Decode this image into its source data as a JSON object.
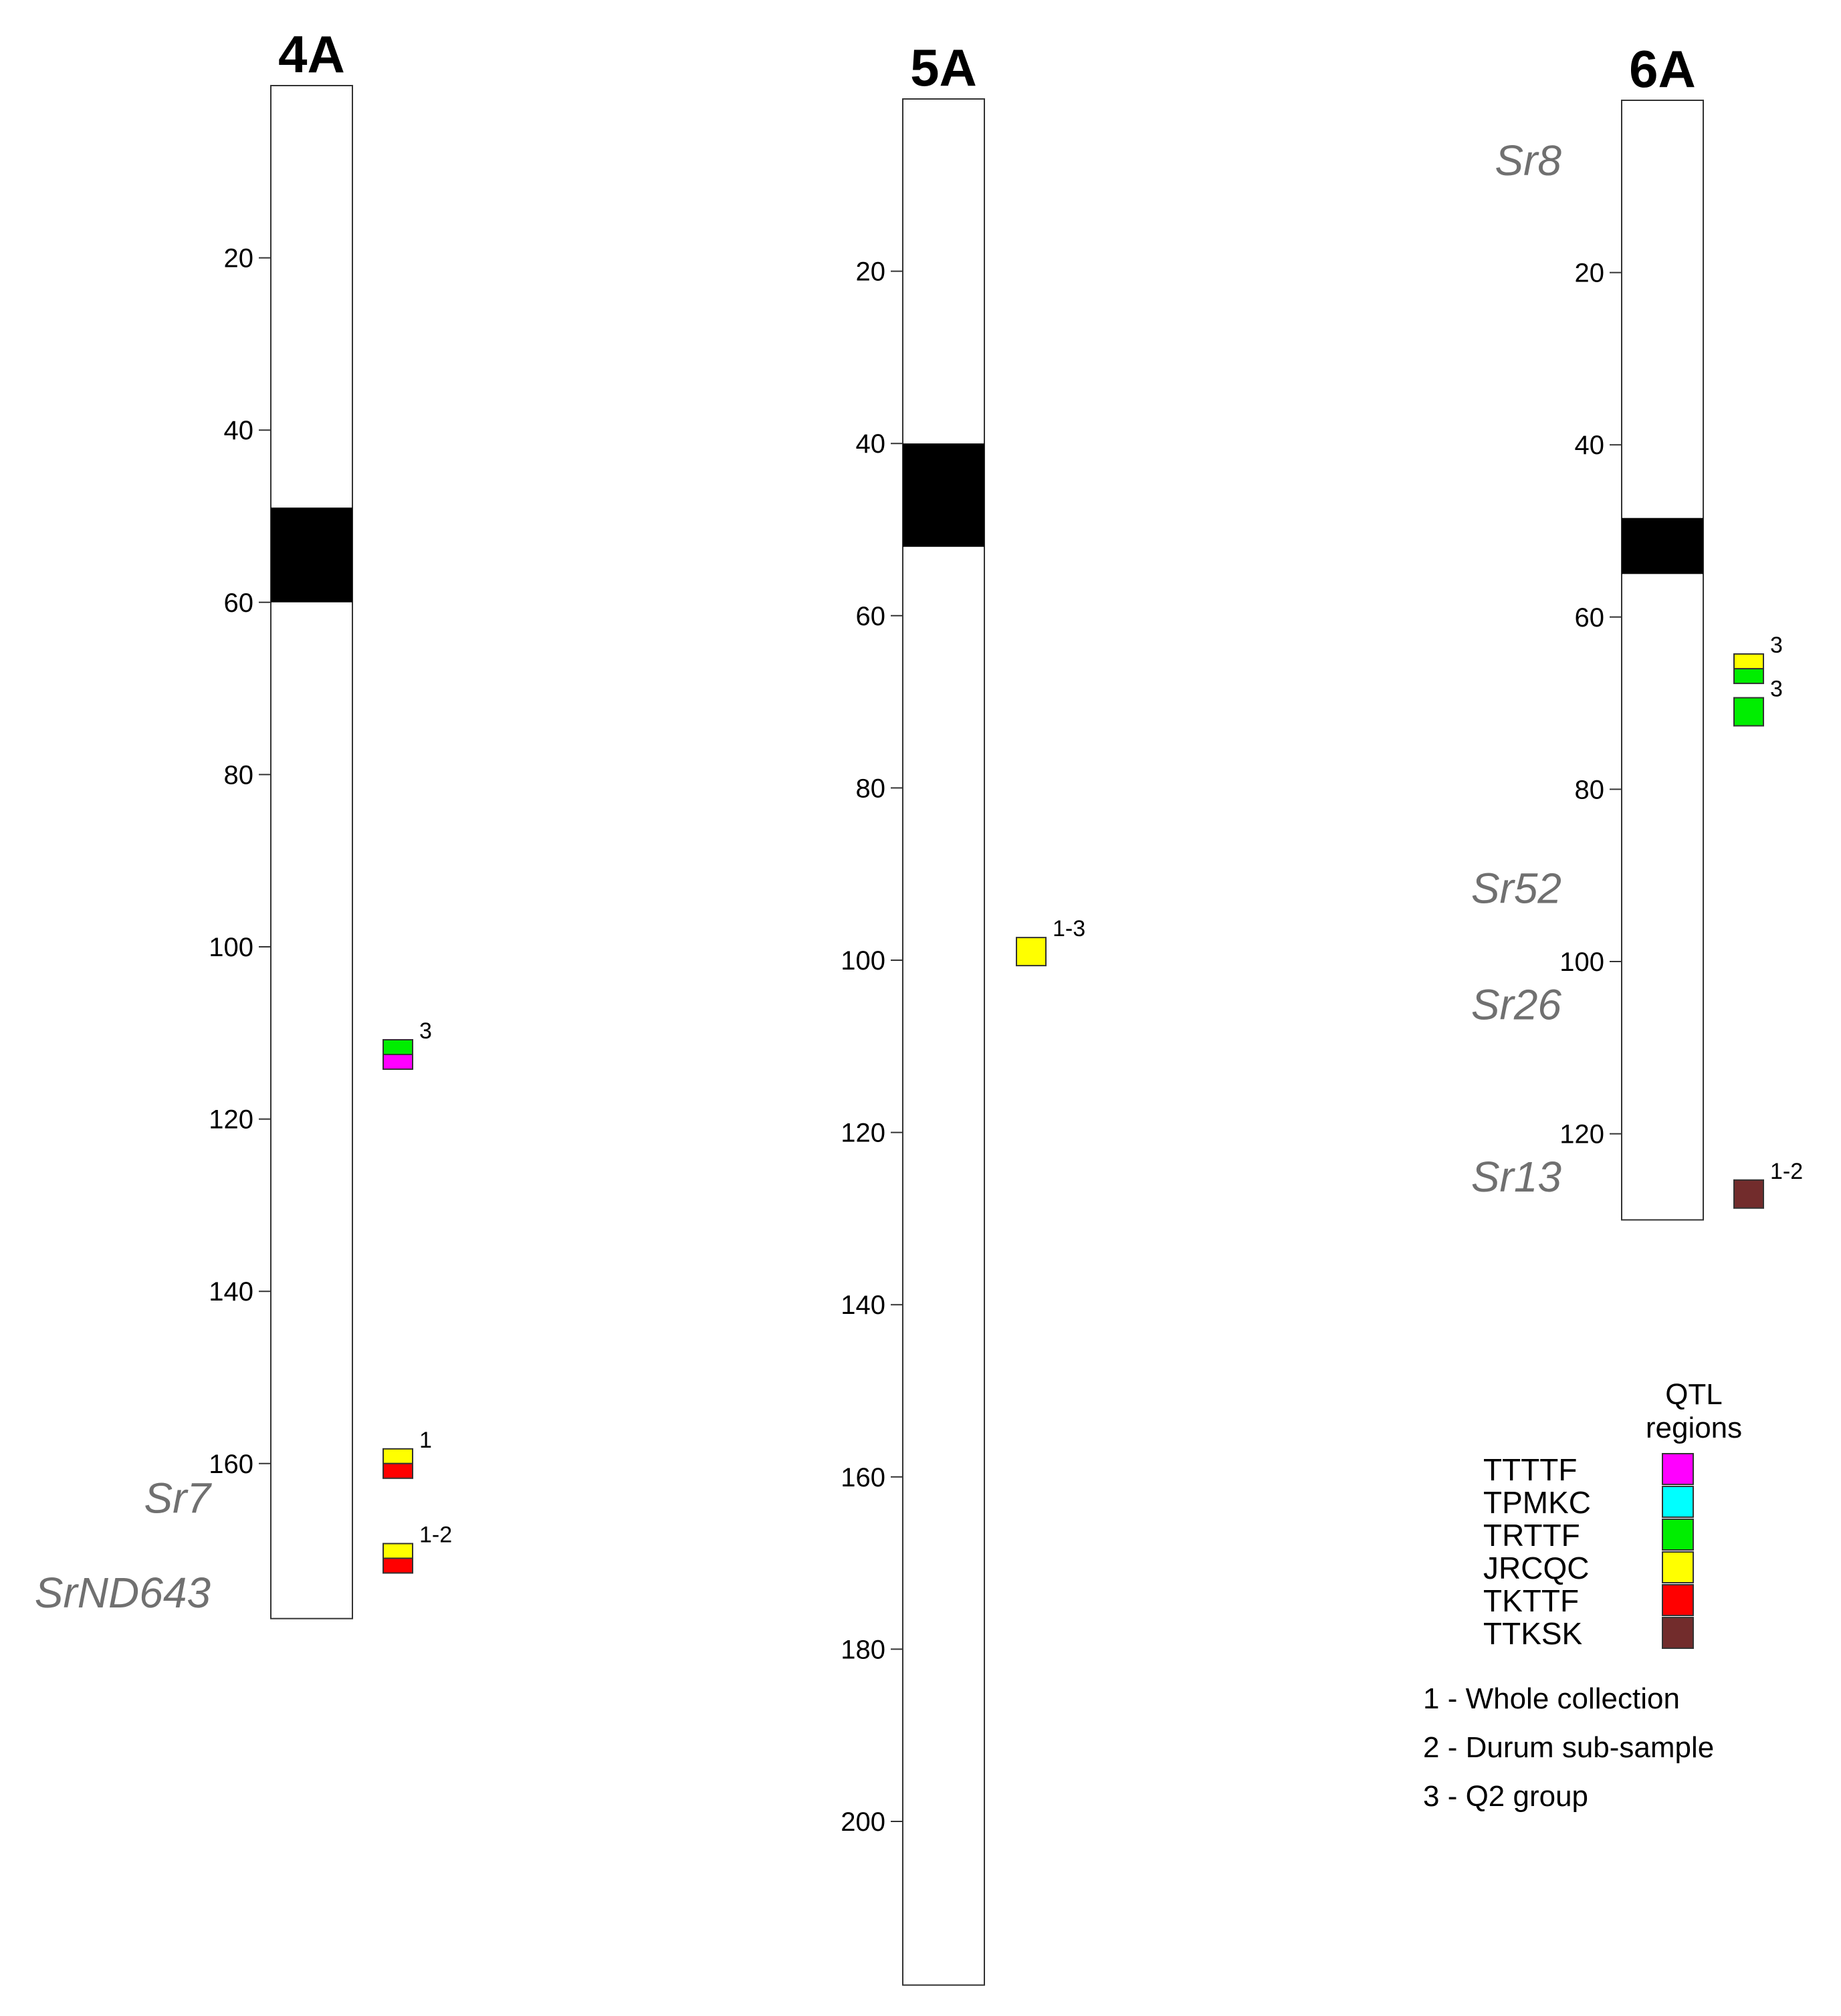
{
  "chromosomes": [
    {
      "id": "4A",
      "title": "4A",
      "length_cM": 178,
      "centromere": [
        49,
        60
      ],
      "ticks": [
        20,
        40,
        60,
        80,
        100,
        120,
        140,
        160
      ],
      "genes": [
        {
          "name": "Sr7",
          "pos": 164
        },
        {
          "name": "SrND643",
          "pos": 175
        }
      ],
      "qtls": [
        {
          "pos": 112.5,
          "colors": [
            "#00ee00",
            "#ff00ff"
          ],
          "label": "3"
        },
        {
          "pos": 160,
          "colors": [
            "#ffff00",
            "#ff0000"
          ],
          "label": "1"
        },
        {
          "pos": 171,
          "colors": [
            "#ffff00",
            "#ff0000"
          ],
          "label": "1-2"
        }
      ]
    },
    {
      "id": "5A",
      "title": "5A",
      "length_cM": 219,
      "centromere": [
        40,
        52
      ],
      "ticks": [
        20,
        40,
        60,
        80,
        100,
        120,
        140,
        160,
        180,
        200
      ],
      "genes": [],
      "qtls": [
        {
          "pos": 99,
          "colors": [
            "#ffff00"
          ],
          "label": "1-3"
        }
      ]
    },
    {
      "id": "6A",
      "title": "6A",
      "length_cM": 130,
      "centromere": [
        48.5,
        55
      ],
      "ticks": [
        20,
        40,
        60,
        80,
        100,
        120
      ],
      "genes": [
        {
          "name": "Sr8",
          "pos": 7
        },
        {
          "name": "Sr52",
          "pos": 91.5
        },
        {
          "name": "Sr26",
          "pos": 105
        },
        {
          "name": "Sr13",
          "pos": 125
        }
      ],
      "qtls": [
        {
          "pos": 66,
          "colors": [
            "#ffff00",
            "#00ee00"
          ],
          "label": "3"
        },
        {
          "pos": 71,
          "colors": [
            "#00ee00"
          ],
          "label": "3"
        },
        {
          "pos": 127,
          "colors": [
            "#722c2c"
          ],
          "label": "1-2"
        }
      ]
    }
  ],
  "legend": {
    "title_line1": "QTL",
    "title_line2": "regions",
    "races": [
      {
        "name": "TTTTF",
        "color": "#ff00ff"
      },
      {
        "name": "TPMKC",
        "color": "#00ffff"
      },
      {
        "name": "TRTTF",
        "color": "#00ee00"
      },
      {
        "name": "JRCQC",
        "color": "#ffff00"
      },
      {
        "name": "TKTTF",
        "color": "#ff0000"
      },
      {
        "name": "TTKSK",
        "color": "#722c2c"
      }
    ],
    "notes": [
      "1 - Whole collection",
      "2 - Durum sub-sample",
      "3 - Q2 group"
    ]
  }
}
